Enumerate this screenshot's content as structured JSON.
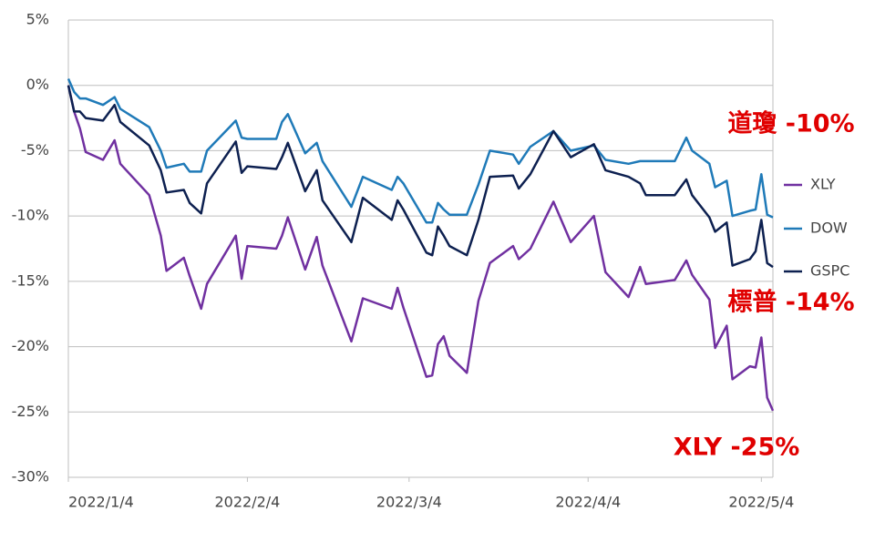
{
  "chart_data": {
    "type": "line",
    "x": [
      "2022/1/4",
      "2022/1/5",
      "2022/1/6",
      "2022/1/7",
      "2022/1/10",
      "2022/1/12",
      "2022/1/13",
      "2022/1/18",
      "2022/1/20",
      "2022/1/21",
      "2022/1/24",
      "2022/1/25",
      "2022/1/27",
      "2022/1/28",
      "2022/2/2",
      "2022/2/3",
      "2022/2/4",
      "2022/2/9",
      "2022/2/10",
      "2022/2/11",
      "2022/2/14",
      "2022/2/16",
      "2022/2/17",
      "2022/2/22",
      "2022/2/24",
      "2022/3/1",
      "2022/3/2",
      "2022/3/3",
      "2022/3/7",
      "2022/3/8",
      "2022/3/9",
      "2022/3/10",
      "2022/3/11",
      "2022/3/14",
      "2022/3/16",
      "2022/3/18",
      "2022/3/22",
      "2022/3/23",
      "2022/3/25",
      "2022/3/29",
      "2022/4/1",
      "2022/4/5",
      "2022/4/7",
      "2022/4/11",
      "2022/4/13",
      "2022/4/14",
      "2022/4/19",
      "2022/4/21",
      "2022/4/22",
      "2022/4/25",
      "2022/4/26",
      "2022/4/28",
      "2022/4/29",
      "2022/5/2",
      "2022/5/3",
      "2022/5/4",
      "2022/5/5",
      "2022/5/6"
    ],
    "series": [
      {
        "name": "XLY",
        "color": "#7030a0",
        "values": [
          0,
          -2,
          -3.3,
          -5.1,
          -5.7,
          -4.2,
          -6,
          -8.4,
          -11.5,
          -14.2,
          -13.2,
          -14.6,
          -17.1,
          -15.2,
          -11.5,
          -14.8,
          -12.3,
          -12.5,
          -11.5,
          -10.1,
          -14.1,
          -11.6,
          -13.8,
          -19.6,
          -16.3,
          -17.1,
          -15.5,
          -17,
          -22.3,
          -22.2,
          -19.8,
          -19.2,
          -20.7,
          -22,
          -16.5,
          -13.6,
          -12.3,
          -13.3,
          -12.5,
          -8.9,
          -12,
          -10,
          -14.3,
          -16.2,
          -13.9,
          -15.2,
          -14.9,
          -13.4,
          -14.5,
          -16.4,
          -20.1,
          -18.4,
          -22.5,
          -21.5,
          -21.6,
          -19.3,
          -23.9,
          -24.9
        ]
      },
      {
        "name": "DOW",
        "color": "#1f7ab8",
        "values": [
          0.5,
          -0.5,
          -1,
          -1,
          -1.5,
          -0.9,
          -1.8,
          -3.2,
          -5,
          -6.3,
          -6,
          -6.6,
          -6.6,
          -5,
          -2.7,
          -4,
          -4.1,
          -4.1,
          -2.8,
          -2.2,
          -5.2,
          -4.4,
          -5.8,
          -9.3,
          -7,
          -8,
          -7,
          -7.5,
          -10.5,
          -10.5,
          -9,
          -9.5,
          -9.9,
          -9.9,
          -7.6,
          -5,
          -5.3,
          -6,
          -4.7,
          -3.5,
          -5,
          -4.6,
          -5.7,
          -6,
          -5.8,
          -5.8,
          -5.8,
          -4,
          -5,
          -6,
          -7.8,
          -7.3,
          -10,
          -9.6,
          -9.5,
          -6.8,
          -9.9,
          -10.1
        ]
      },
      {
        "name": "GSPC",
        "color": "#0d2050",
        "values": [
          0,
          -2,
          -2,
          -2.5,
          -2.7,
          -1.5,
          -2.8,
          -4.6,
          -6.5,
          -8.2,
          -8,
          -9,
          -9.8,
          -7.5,
          -4.3,
          -6.7,
          -6.2,
          -6.4,
          -5.5,
          -4.4,
          -8.1,
          -6.5,
          -8.8,
          -12,
          -8.6,
          -10.3,
          -8.8,
          -9.5,
          -12.8,
          -13,
          -10.8,
          -11.5,
          -12.3,
          -13,
          -10.3,
          -7,
          -6.9,
          -7.9,
          -6.8,
          -3.5,
          -5.5,
          -4.5,
          -6.5,
          -7,
          -7.5,
          -8.4,
          -8.4,
          -7.2,
          -8.4,
          -10.1,
          -11.2,
          -10.5,
          -13.8,
          -13.3,
          -12.7,
          -10.3,
          -13.6,
          -13.9
        ]
      }
    ],
    "xlim": [
      "2022/1/4",
      "2022/5/6"
    ],
    "xticks": [
      "2022/1/4",
      "2022/2/4",
      "2022/3/4",
      "2022/4/4",
      "2022/5/4"
    ],
    "ylim": [
      -30,
      5
    ],
    "yticks": [
      {
        "value": -30,
        "label": "-30%"
      },
      {
        "value": -25,
        "label": "-25%"
      },
      {
        "value": -20,
        "label": "-20%"
      },
      {
        "value": -15,
        "label": "-15%"
      },
      {
        "value": -10,
        "label": "-10%"
      },
      {
        "value": -5,
        "label": "-5%"
      },
      {
        "value": 0,
        "label": "0%"
      },
      {
        "value": 5,
        "label": "5%"
      }
    ],
    "grid": true,
    "legend": "right",
    "annotations": [
      {
        "text": "道瓊 -10%",
        "color": "#e00000"
      },
      {
        "text": "標普 -14%",
        "color": "#e00000"
      },
      {
        "text": "XLY -25%",
        "color": "#e00000"
      }
    ]
  }
}
